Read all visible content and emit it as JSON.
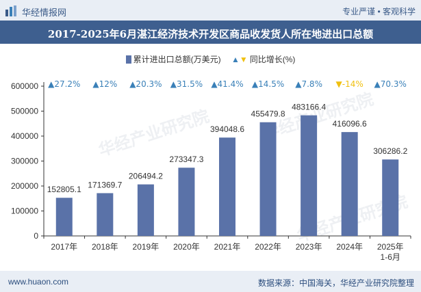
{
  "header": {
    "brand": "华经情报网",
    "tagline": "专业严谨 • 客观科学"
  },
  "chart_data": {
    "type": "bar",
    "title": "2017-2025年6月湛江经济技术开发区商品收发货人所在地进出口总额",
    "categories": [
      "2017年",
      "2018年",
      "2019年",
      "2020年",
      "2021年",
      "2022年",
      "2023年",
      "2024年",
      "2025年 1-6月"
    ],
    "series": [
      {
        "name": "累计进出口总额(万美元)",
        "values": [
          152805.1,
          171369.7,
          206494.2,
          273347.3,
          394048.6,
          455479.8,
          483166.4,
          416096.6,
          306286.2
        ],
        "value_labels": [
          "152805.1",
          "171369.7",
          "206494.2",
          "273347.3",
          "394048.6",
          "455479.8",
          "483166.4",
          "416096.6",
          "306286.2"
        ]
      },
      {
        "name": "同比增长(%)",
        "values": [
          27.2,
          12,
          20.3,
          31.5,
          41.4,
          14.5,
          7.8,
          -14,
          70.3
        ],
        "value_labels": [
          "27.2%",
          "12%",
          "20.3%",
          "31.5%",
          "41.4%",
          "14.5%",
          "7.8%",
          "-14%",
          "70.3%"
        ]
      }
    ],
    "y_ticks": [
      "0",
      "100000",
      "200000",
      "300000",
      "400000",
      "500000",
      "600000"
    ],
    "ylim": [
      0,
      600000
    ],
    "grid": false,
    "legend_position": "top-center",
    "colors": {
      "bar": "#5a72a8",
      "up": "#3a80b8",
      "down": "#f0c010"
    }
  },
  "footer": {
    "website": "www.huaon.com",
    "source": "数据来源：中国海关，华经产业研究院整理"
  }
}
